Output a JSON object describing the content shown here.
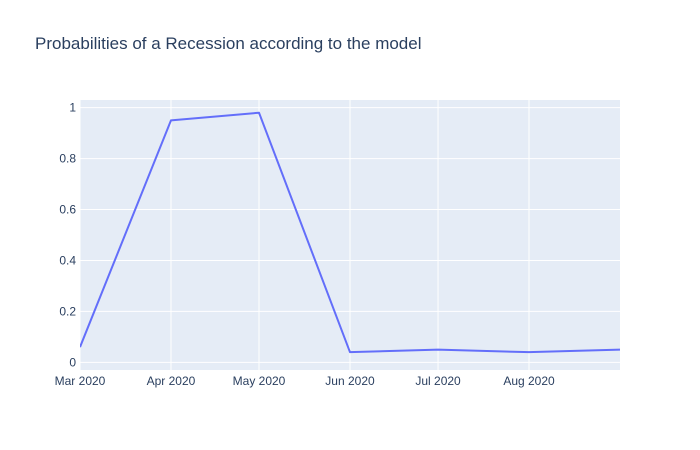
{
  "chart_data": {
    "type": "line",
    "title": "Probabilities of a Recession according to the model",
    "xlabel": "",
    "ylabel": "",
    "x": [
      "2020-03-01",
      "2020-04-01",
      "2020-05-01",
      "2020-06-01",
      "2020-07-01",
      "2020-08-01",
      "2020-09-01"
    ],
    "series": [
      {
        "values": [
          0.06,
          0.95,
          0.98,
          0.04,
          0.05,
          0.04,
          0.05
        ]
      }
    ],
    "xlim": [
      "2020-03-01",
      "2020-09-01"
    ],
    "ylim": [
      -0.03,
      1.03
    ],
    "x_ticks": [
      {
        "date": "2020-03-01",
        "label": "Mar 2020"
      },
      {
        "date": "2020-04-01",
        "label": "Apr 2020"
      },
      {
        "date": "2020-05-01",
        "label": "May 2020"
      },
      {
        "date": "2020-06-01",
        "label": "Jun 2020"
      },
      {
        "date": "2020-07-01",
        "label": "Jul 2020"
      },
      {
        "date": "2020-08-01",
        "label": "Aug 2020"
      }
    ],
    "y_ticks": [
      0,
      0.2,
      0.4,
      0.6,
      0.8,
      1
    ],
    "y_tick_labels": [
      "0",
      "0.2",
      "0.4",
      "0.6",
      "0.8",
      "1"
    ],
    "grid": true,
    "legend": "none",
    "colors": {
      "line": "#636efa",
      "plot_bg": "#e5ecf6",
      "grid": "#ffffff",
      "text": "#2a3f5f"
    }
  }
}
